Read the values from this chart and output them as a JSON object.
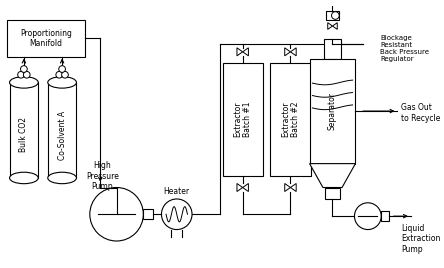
{
  "bg_color": "#ffffff",
  "line_color": "#000000",
  "labels": {
    "proportioning_manifold": "Proportioning\nManifold",
    "bulk_co2": "Bulk CO2",
    "co_solvent": "Co-Solvent A",
    "high_pressure_pump": "High\nPressure\nPump",
    "heater": "Heater",
    "extractor1": "Extractor\nBatch #1",
    "extractor2": "Extractor\nBatch #2",
    "separator": "Separator",
    "blockage": "Blockage\nResistant\nBack Pressure\nRegulator",
    "gas_out": "Gas Out\nto Recycle",
    "liquid_pump": "Liquid\nExtraction\nPump"
  }
}
